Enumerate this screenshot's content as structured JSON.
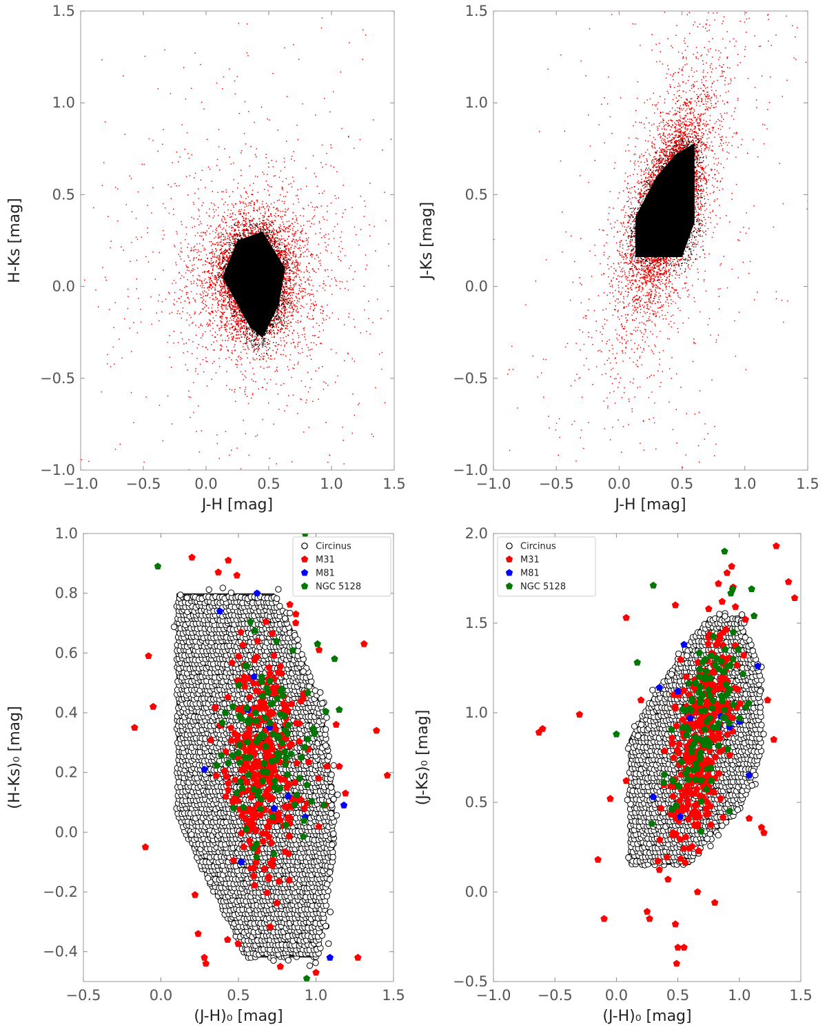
{
  "chart_data": [
    {
      "id": "panel-a",
      "type": "scatter",
      "title": "",
      "xlabel": "J-H [mag]",
      "ylabel": "H-Ks [mag]",
      "xlim": [
        -1.0,
        1.5
      ],
      "ylim": [
        -1.0,
        1.5
      ],
      "xticks": [
        -1.0,
        -0.5,
        0.0,
        0.5,
        1.0,
        1.5
      ],
      "yticks": [
        -1.0,
        -0.5,
        0.0,
        0.5,
        1.0,
        1.5
      ],
      "xtick_labels": [
        "−1.0",
        "−0.5",
        "0.0",
        "0.5",
        "1.0",
        "1.5"
      ],
      "ytick_labels": [
        "−1.0",
        "−0.5",
        "0.0",
        "0.5",
        "1.0",
        "1.5"
      ],
      "colors": {
        "dense": "#000000",
        "sparse": "#ff0000"
      },
      "dense_region_polygon": [
        [
          0.13,
          0.05
        ],
        [
          0.25,
          0.25
        ],
        [
          0.45,
          0.3
        ],
        [
          0.63,
          0.1
        ],
        [
          0.58,
          -0.1
        ],
        [
          0.45,
          -0.28
        ],
        [
          0.35,
          -0.22
        ]
      ],
      "red_envelope_center": [
        0.38,
        0.05
      ],
      "red_envelope_spread": [
        0.26,
        0.24
      ]
    },
    {
      "id": "panel-b",
      "type": "scatter",
      "title": "",
      "xlabel": "J-H [mag]",
      "ylabel": "J-Ks [mag]",
      "xlim": [
        -1.0,
        1.5
      ],
      "ylim": [
        -1.0,
        1.5
      ],
      "xticks": [
        -1.0,
        -0.5,
        0.0,
        0.5,
        1.0,
        1.5
      ],
      "yticks": [
        -1.0,
        -0.5,
        0.0,
        0.5,
        1.0,
        1.5
      ],
      "xtick_labels": [
        "−1.0",
        "−0.5",
        "0.0",
        "0.5",
        "1.0",
        "1.5"
      ],
      "ytick_labels": [
        "−1.0",
        "−0.5",
        "0.0",
        "0.5",
        "1.0",
        "1.5"
      ],
      "colors": {
        "dense": "#000000",
        "sparse": "#ff0000"
      },
      "dense_region_polygon": [
        [
          0.13,
          0.16
        ],
        [
          0.13,
          0.38
        ],
        [
          0.3,
          0.6
        ],
        [
          0.45,
          0.72
        ],
        [
          0.6,
          0.78
        ],
        [
          0.6,
          0.35
        ],
        [
          0.5,
          0.16
        ]
      ],
      "red_envelope_center": [
        0.38,
        0.45
      ],
      "red_envelope_spread": [
        0.22,
        0.3
      ]
    },
    {
      "id": "panel-c",
      "type": "scatter",
      "title": "",
      "xlabel": "(J-H)₀ [mag]",
      "ylabel": "(H-Ks)₀ [mag]",
      "xlim": [
        -0.5,
        1.5
      ],
      "ylim": [
        -0.5,
        1.0
      ],
      "xticks": [
        -0.5,
        0.0,
        0.5,
        1.0,
        1.5
      ],
      "yticks": [
        -0.4,
        -0.2,
        0.0,
        0.2,
        0.4,
        0.6,
        0.8,
        1.0
      ],
      "xtick_labels": [
        "−0.5",
        "0.0",
        "0.5",
        "1.0",
        "1.5"
      ],
      "ytick_labels": [
        "−0.4",
        "−0.2",
        "0.0",
        "0.2",
        "0.4",
        "0.6",
        "0.8",
        "1.0"
      ],
      "circinus_polygon": [
        [
          0.1,
          0.8
        ],
        [
          0.73,
          0.8
        ],
        [
          0.85,
          0.68
        ],
        [
          1.05,
          0.4
        ],
        [
          1.12,
          0.1
        ],
        [
          1.12,
          -0.05
        ],
        [
          1.02,
          -0.42
        ],
        [
          0.55,
          -0.42
        ],
        [
          0.1,
          0.05
        ]
      ],
      "legend": {
        "placement": "top-right",
        "entries": [
          {
            "label": "Circinus",
            "marker": "open-circle",
            "color": "#000000"
          },
          {
            "label": "M31",
            "marker": "pentagon",
            "color": "#ff0000"
          },
          {
            "label": "M81",
            "marker": "pentagon",
            "color": "#0000ff"
          },
          {
            "label": "NGC 5128",
            "marker": "pentagon",
            "color": "#007700"
          }
        ]
      },
      "series": [
        {
          "name": "M31",
          "color": "#ff0000",
          "outliers": [
            [
              0.2,
              0.92
            ],
            [
              0.37,
              0.87
            ],
            [
              0.49,
              0.86
            ],
            [
              -0.08,
              0.59
            ],
            [
              -0.05,
              0.42
            ],
            [
              -0.17,
              0.35
            ],
            [
              -0.1,
              -0.05
            ],
            [
              0.22,
              -0.21
            ],
            [
              0.24,
              -0.34
            ],
            [
              0.28,
              -0.42
            ],
            [
              0.29,
              -0.44
            ],
            [
              0.43,
              -0.36
            ],
            [
              0.77,
              -0.45
            ],
            [
              0.87,
              0.73
            ],
            [
              1.0,
              -0.47
            ],
            [
              1.02,
              0.61
            ],
            [
              1.13,
              0.36
            ],
            [
              1.19,
              0.13
            ],
            [
              1.27,
              -0.42
            ],
            [
              1.31,
              0.63
            ],
            [
              1.39,
              0.34
            ],
            [
              1.46,
              0.19
            ],
            [
              1.15,
              0.22
            ],
            [
              1.07,
              0.22
            ],
            [
              1.06,
              0.09
            ]
          ],
          "center": [
            0.66,
            0.22
          ],
          "spread": [
            0.12,
            0.2
          ]
        },
        {
          "name": "M81",
          "color": "#0000ff",
          "points": [
            [
              0.62,
              0.8
            ],
            [
              0.38,
              0.74
            ],
            [
              0.6,
              0.52
            ],
            [
              0.56,
              0.41
            ],
            [
              0.28,
              0.21
            ],
            [
              0.52,
              -0.1
            ],
            [
              0.73,
              0.08
            ],
            [
              0.82,
              0.12
            ],
            [
              0.93,
              0.05
            ],
            [
              1.09,
              -0.42
            ],
            [
              1.18,
              0.09
            ],
            [
              0.7,
              0.35
            ]
          ]
        },
        {
          "name": "NGC 5128",
          "color": "#007700",
          "outliers": [
            [
              -0.02,
              0.89
            ],
            [
              0.93,
              1.0
            ],
            [
              0.94,
              -0.49
            ],
            [
              1.01,
              0.63
            ],
            [
              1.12,
              0.58
            ],
            [
              1.15,
              0.41
            ]
          ],
          "center": [
            0.7,
            0.27
          ],
          "spread": [
            0.15,
            0.16
          ]
        }
      ]
    },
    {
      "id": "panel-d",
      "type": "scatter",
      "title": "",
      "xlabel": "(J-H)₀ [mag]",
      "ylabel": "(J-Ks)₀ [mag]",
      "xlim": [
        -1.0,
        1.5
      ],
      "ylim": [
        -0.5,
        2.0
      ],
      "xticks": [
        -1.0,
        -0.5,
        0.0,
        0.5,
        1.0,
        1.5
      ],
      "yticks": [
        -0.5,
        0.0,
        0.5,
        1.0,
        1.5,
        2.0
      ],
      "xtick_labels": [
        "−1.0",
        "−0.5",
        "0.0",
        "0.5",
        "1.0",
        "1.5"
      ],
      "ytick_labels": [
        "−0.5",
        "0.0",
        "0.5",
        "1.0",
        "1.5",
        "2.0"
      ],
      "circinus_polygon": [
        [
          0.1,
          0.15
        ],
        [
          0.1,
          0.85
        ],
        [
          0.3,
          1.1
        ],
        [
          0.65,
          1.45
        ],
        [
          0.75,
          1.53
        ],
        [
          1.0,
          1.53
        ],
        [
          1.18,
          1.25
        ],
        [
          1.18,
          0.75
        ],
        [
          1.0,
          0.45
        ],
        [
          0.75,
          0.3
        ],
        [
          0.6,
          0.15
        ]
      ],
      "legend": {
        "placement": "top-left",
        "entries": [
          {
            "label": "Circinus",
            "marker": "open-circle",
            "color": "#000000"
          },
          {
            "label": "M31",
            "marker": "pentagon",
            "color": "#ff0000"
          },
          {
            "label": "M81",
            "marker": "pentagon",
            "color": "#0000ff"
          },
          {
            "label": "NGC 5128",
            "marker": "pentagon",
            "color": "#007700"
          }
        ]
      },
      "series": [
        {
          "name": "M31",
          "color": "#ff0000",
          "outliers": [
            [
              -0.63,
              0.89
            ],
            [
              -0.6,
              0.91
            ],
            [
              -0.3,
              0.99
            ],
            [
              -0.15,
              0.18
            ],
            [
              -0.1,
              -0.15
            ],
            [
              -0.05,
              0.52
            ],
            [
              0.08,
              1.53
            ],
            [
              0.08,
              0.62
            ],
            [
              0.2,
              1.07
            ],
            [
              0.25,
              -0.11
            ],
            [
              0.27,
              -0.15
            ],
            [
              0.42,
              0.07
            ],
            [
              0.48,
              -0.18
            ],
            [
              0.5,
              -0.31
            ],
            [
              0.55,
              -0.31
            ],
            [
              0.49,
              -0.4
            ],
            [
              0.48,
              1.6
            ],
            [
              0.8,
              -0.06
            ],
            [
              0.83,
              1.72
            ],
            [
              0.86,
              1.62
            ],
            [
              0.9,
              1.78
            ],
            [
              0.95,
              1.7
            ],
            [
              1.05,
              1.52
            ],
            [
              1.08,
              0.41
            ],
            [
              1.18,
              0.36
            ],
            [
              1.2,
              0.33
            ],
            [
              1.23,
              1.07
            ],
            [
              1.28,
              0.85
            ],
            [
              1.3,
              1.93
            ],
            [
              1.4,
              1.73
            ],
            [
              1.45,
              1.64
            ]
          ],
          "center": [
            0.7,
            0.85
          ],
          "spread": [
            0.13,
            0.25
          ]
        },
        {
          "name": "M81",
          "color": "#0000ff",
          "points": [
            [
              0.55,
              1.38
            ],
            [
              0.35,
              1.14
            ],
            [
              0.5,
              1.12
            ],
            [
              0.85,
              0.98
            ],
            [
              0.92,
              0.92
            ],
            [
              0.83,
              0.92
            ],
            [
              1.0,
              0.95
            ],
            [
              0.3,
              0.53
            ],
            [
              0.52,
              0.42
            ],
            [
              1.08,
              0.65
            ],
            [
              1.15,
              1.26
            ],
            [
              0.6,
              0.97
            ]
          ]
        },
        {
          "name": "NGC 5128",
          "color": "#007700",
          "outliers": [
            [
              0.3,
              1.71
            ],
            [
              0.88,
              1.9
            ],
            [
              1.1,
              1.69
            ],
            [
              1.12,
              1.54
            ],
            [
              0.0,
              0.88
            ],
            [
              0.17,
              1.28
            ],
            [
              0.92,
              0.45
            ]
          ],
          "center": [
            0.72,
            0.95
          ],
          "spread": [
            0.13,
            0.22
          ]
        }
      ]
    }
  ]
}
